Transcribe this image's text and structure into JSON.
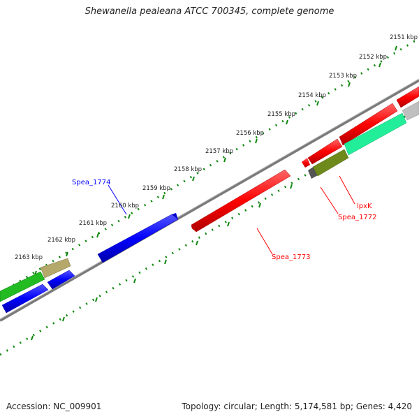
{
  "title": "Shewanella pealeana ATCC 700345, complete genome",
  "footer": {
    "accession": "Accession: NC_009901",
    "stats": "Topology: circular; Length: 5,174,581 bp; Genes: 4,420"
  },
  "scale_labels": [
    "2151 kbp",
    "2152 kbp",
    "2153 kbp",
    "2154 kbp",
    "2155 kbp",
    "2156 kbp",
    "2157 kbp",
    "2158 kbp",
    "2159 kbp",
    "2160 kbp",
    "2161 kbp",
    "2162 kbp",
    "2163 kbp"
  ],
  "gene_labels": {
    "spea_1774": "Spea_1774",
    "spea_1773": "Spea_1773",
    "spea_1772": "Spea_1772",
    "lpxk": "lpxK"
  },
  "colors": {
    "forward_gene": "#0000ff",
    "reverse_gene": "#ff0000",
    "backbone": "#7a7a7a",
    "tick": "#118811",
    "cds_green": "#22bb22",
    "cds_teal": "#22ee99",
    "cds_olive": "#6e8a1a",
    "cds_tan": "#b4a86a",
    "cds_gray": "#bfbfbf",
    "cds_dark": "#555555"
  }
}
